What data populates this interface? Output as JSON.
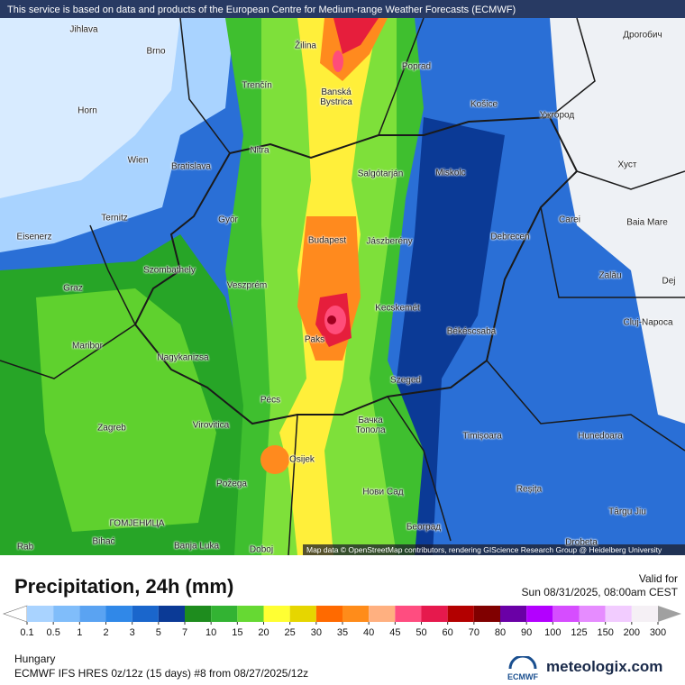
{
  "header": {
    "notice": "This service is based on data and products of the European Centre for Medium-range Weather Forecasts (ECMWF)"
  },
  "map": {
    "cities": [
      "Jihlava",
      "Brno",
      "Žilina",
      "Poprad",
      "Дрогобич",
      "Trenčín",
      "Banská Bystrica",
      "Košice",
      "Horn",
      "Ужгород",
      "Nitra",
      "Wien",
      "Bratislava",
      "Salgótarján",
      "Miskolc",
      "Хуст",
      "Ternitz",
      "Győr",
      "Carei",
      "Baia Mare",
      "Eisenerz",
      "Budapest",
      "Jászberény",
      "Debrecen",
      "Szombathely",
      "Zalău",
      "Graz",
      "Veszprém",
      "Kecskemét",
      "Dej",
      "Cluj-Napoca",
      "Maribor",
      "Paks",
      "Békéscsaba",
      "Nagykanizsa",
      "Szeged",
      "Pécs",
      "Zagreb",
      "Virovitica",
      "Бачка Топола",
      "Timișoara",
      "Hunedoara",
      "Osijek",
      "Požega",
      "Нови Сад",
      "Reșița",
      "Târgu Jiu",
      "ГОМЈЕНИЦА",
      "Bihać",
      "Banja Luka",
      "Doboj",
      "Београд",
      "Drobeta",
      "Rab"
    ],
    "attribution": "Map data © OpenStreetMap contributors, rendering GIScience Research Group @ Heidelberg University"
  },
  "legend": {
    "title": "Precipitation, 24h (mm)",
    "ticks": [
      0.1,
      0.5,
      1,
      2,
      3,
      5,
      7,
      10,
      15,
      20,
      25,
      30,
      35,
      40,
      45,
      50,
      60,
      70,
      80,
      90,
      100,
      125,
      150,
      200,
      300
    ],
    "colors": [
      "#ffffff",
      "#a9d3ff",
      "#80bdfa",
      "#5aa3f2",
      "#3088e8",
      "#1a66cc",
      "#0b3a96",
      "#1e8c1e",
      "#33b333",
      "#66d933",
      "#ffff33",
      "#e6d600",
      "#ff6a00",
      "#ff8c1a",
      "#ffb080",
      "#ff4d80",
      "#e6194d",
      "#b30000",
      "#800000",
      "#6a00a6",
      "#b300ff",
      "#d64dff",
      "#e68cff",
      "#f2ccff",
      "#f5f0f5",
      "#a0a0a0"
    ]
  },
  "valid": {
    "label": "Valid for",
    "time": "Sun 08/31/2025, 08:00am CEST"
  },
  "footer": {
    "region": "Hungary",
    "model": "ECMWF IFS HRES 0z/12z (15 days) #8 from  08/27/2025/12z",
    "ecmwf": "ECMWF",
    "brand": "meteologix.com"
  }
}
